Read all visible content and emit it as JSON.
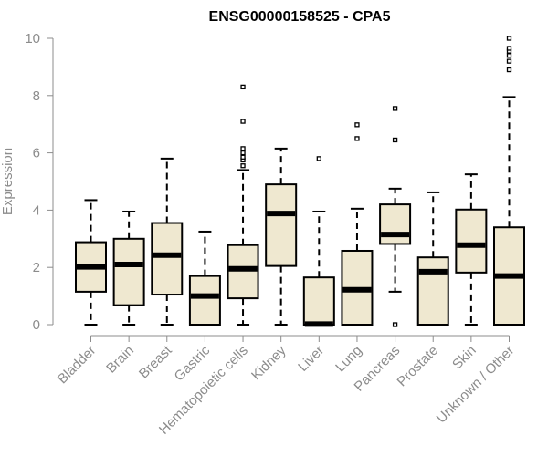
{
  "chart_data": {
    "type": "box",
    "title": "ENSG00000158525 - CPA5",
    "ylabel": "Expression",
    "xlabel": "",
    "ylim": [
      0,
      10
    ],
    "yticks": [
      0,
      2,
      4,
      6,
      8,
      10
    ],
    "grid": false,
    "colors": {
      "box_fill": "#efe8d0",
      "box_stroke": "#000000",
      "axis": "#8c8c8c"
    },
    "categories": [
      "Bladder",
      "Brain",
      "Breast",
      "Gastric",
      "Hematopoietic cells",
      "Kidney",
      "Liver",
      "Lung",
      "Pancreas",
      "Prostate",
      "Skin",
      "Unknown / Other"
    ],
    "boxes": [
      {
        "category": "Bladder",
        "whisker_low": 0,
        "q1": 1.15,
        "median": 2.02,
        "q3": 2.88,
        "whisker_high": 4.35,
        "outliers": []
      },
      {
        "category": "Brain",
        "whisker_low": 0,
        "q1": 0.68,
        "median": 2.1,
        "q3": 3.0,
        "whisker_high": 3.95,
        "outliers": []
      },
      {
        "category": "Breast",
        "whisker_low": 0,
        "q1": 1.05,
        "median": 2.43,
        "q3": 3.55,
        "whisker_high": 5.8,
        "outliers": []
      },
      {
        "category": "Gastric",
        "whisker_low": 0,
        "q1": 0,
        "median": 1.0,
        "q3": 1.7,
        "whisker_high": 3.25,
        "outliers": []
      },
      {
        "category": "Hematopoietic cells",
        "whisker_low": 0,
        "q1": 0.92,
        "median": 1.95,
        "q3": 2.78,
        "whisker_high": 5.4,
        "outliers": [
          5.55,
          5.75,
          5.85,
          6.0,
          6.15,
          7.1,
          8.3
        ]
      },
      {
        "category": "Kidney",
        "whisker_low": 0,
        "q1": 2.05,
        "median": 3.88,
        "q3": 4.9,
        "whisker_high": 6.15,
        "outliers": []
      },
      {
        "category": "Liver",
        "whisker_low": 0,
        "q1": 0,
        "median": 0.02,
        "q3": 1.65,
        "whisker_high": 3.95,
        "outliers": [
          5.8
        ]
      },
      {
        "category": "Lung",
        "whisker_low": 0,
        "q1": 0,
        "median": 1.22,
        "q3": 2.58,
        "whisker_high": 4.05,
        "outliers": [
          6.5,
          6.98
        ]
      },
      {
        "category": "Pancreas",
        "whisker_low": 1.15,
        "q1": 2.82,
        "median": 3.15,
        "q3": 4.2,
        "whisker_high": 4.75,
        "outliers": [
          0,
          6.45,
          7.55
        ]
      },
      {
        "category": "Prostate",
        "whisker_low": 0,
        "q1": 0,
        "median": 1.85,
        "q3": 2.35,
        "whisker_high": 4.62,
        "outliers": []
      },
      {
        "category": "Skin",
        "whisker_low": 0,
        "q1": 1.82,
        "median": 2.78,
        "q3": 4.02,
        "whisker_high": 5.25,
        "outliers": []
      },
      {
        "category": "Unknown / Other",
        "whisker_low": 0,
        "q1": 0,
        "median": 1.7,
        "q3": 3.4,
        "whisker_high": 7.95,
        "outliers": [
          8.9,
          9.2,
          9.4,
          9.55,
          9.65,
          10.0
        ]
      }
    ]
  }
}
